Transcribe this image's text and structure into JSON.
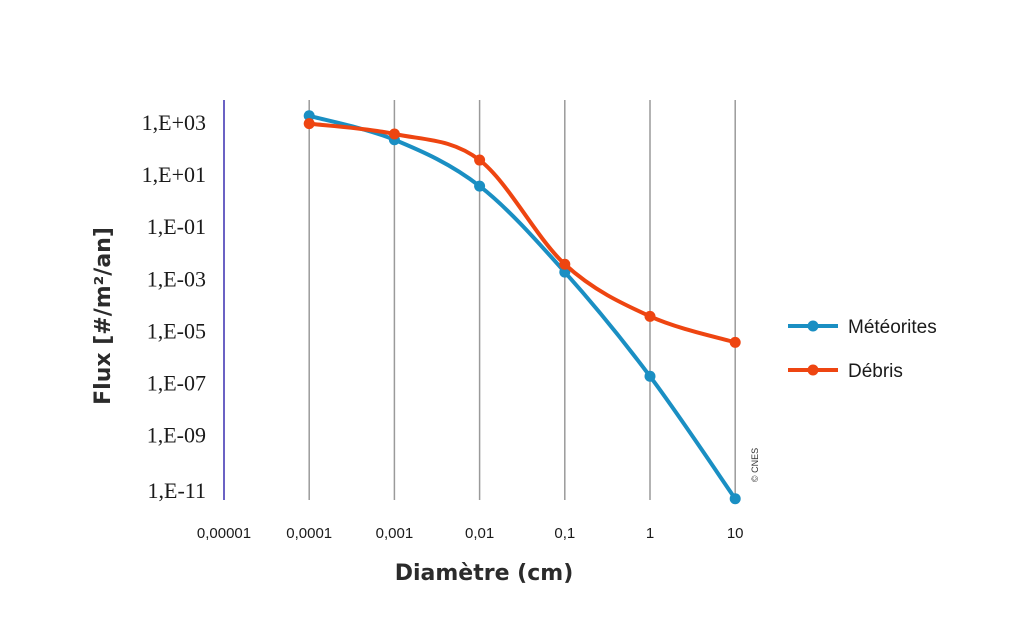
{
  "chart_data": {
    "type": "line",
    "xscale": "log",
    "yscale": "log",
    "x_ticks": [
      "0,00001",
      "0,0001",
      "0,001",
      "0,01",
      "0,1",
      "1",
      "10"
    ],
    "y_ticks": [
      "1,E+03",
      "1,E+01",
      "1,E-01",
      "1,E-03",
      "1,E-05",
      "1,E-07",
      "1,E-09",
      "1,E-11"
    ],
    "xlabel": "Diamètre (cm)",
    "ylabel": "Flux [#/m²/an]",
    "xlim": [
      1e-05,
      30
    ],
    "ylim": [
      1e-11,
      30000.0
    ],
    "grid": true,
    "legend_position": "right",
    "series": [
      {
        "name": "Météorites",
        "color": "#1a8fc3",
        "x": [
          0.0001,
          0.001,
          0.01,
          0.1,
          1,
          10
        ],
        "y": [
          5000,
          600,
          10,
          0.005,
          5e-07,
          1e-11
        ]
      },
      {
        "name": "Débris",
        "color": "#ee4511",
        "x": [
          0.0001,
          0.001,
          0.01,
          0.1,
          1,
          10
        ],
        "y": [
          2500,
          1000,
          100,
          0.01,
          0.0001,
          1e-05
        ]
      }
    ],
    "annotation": "© CNES"
  }
}
